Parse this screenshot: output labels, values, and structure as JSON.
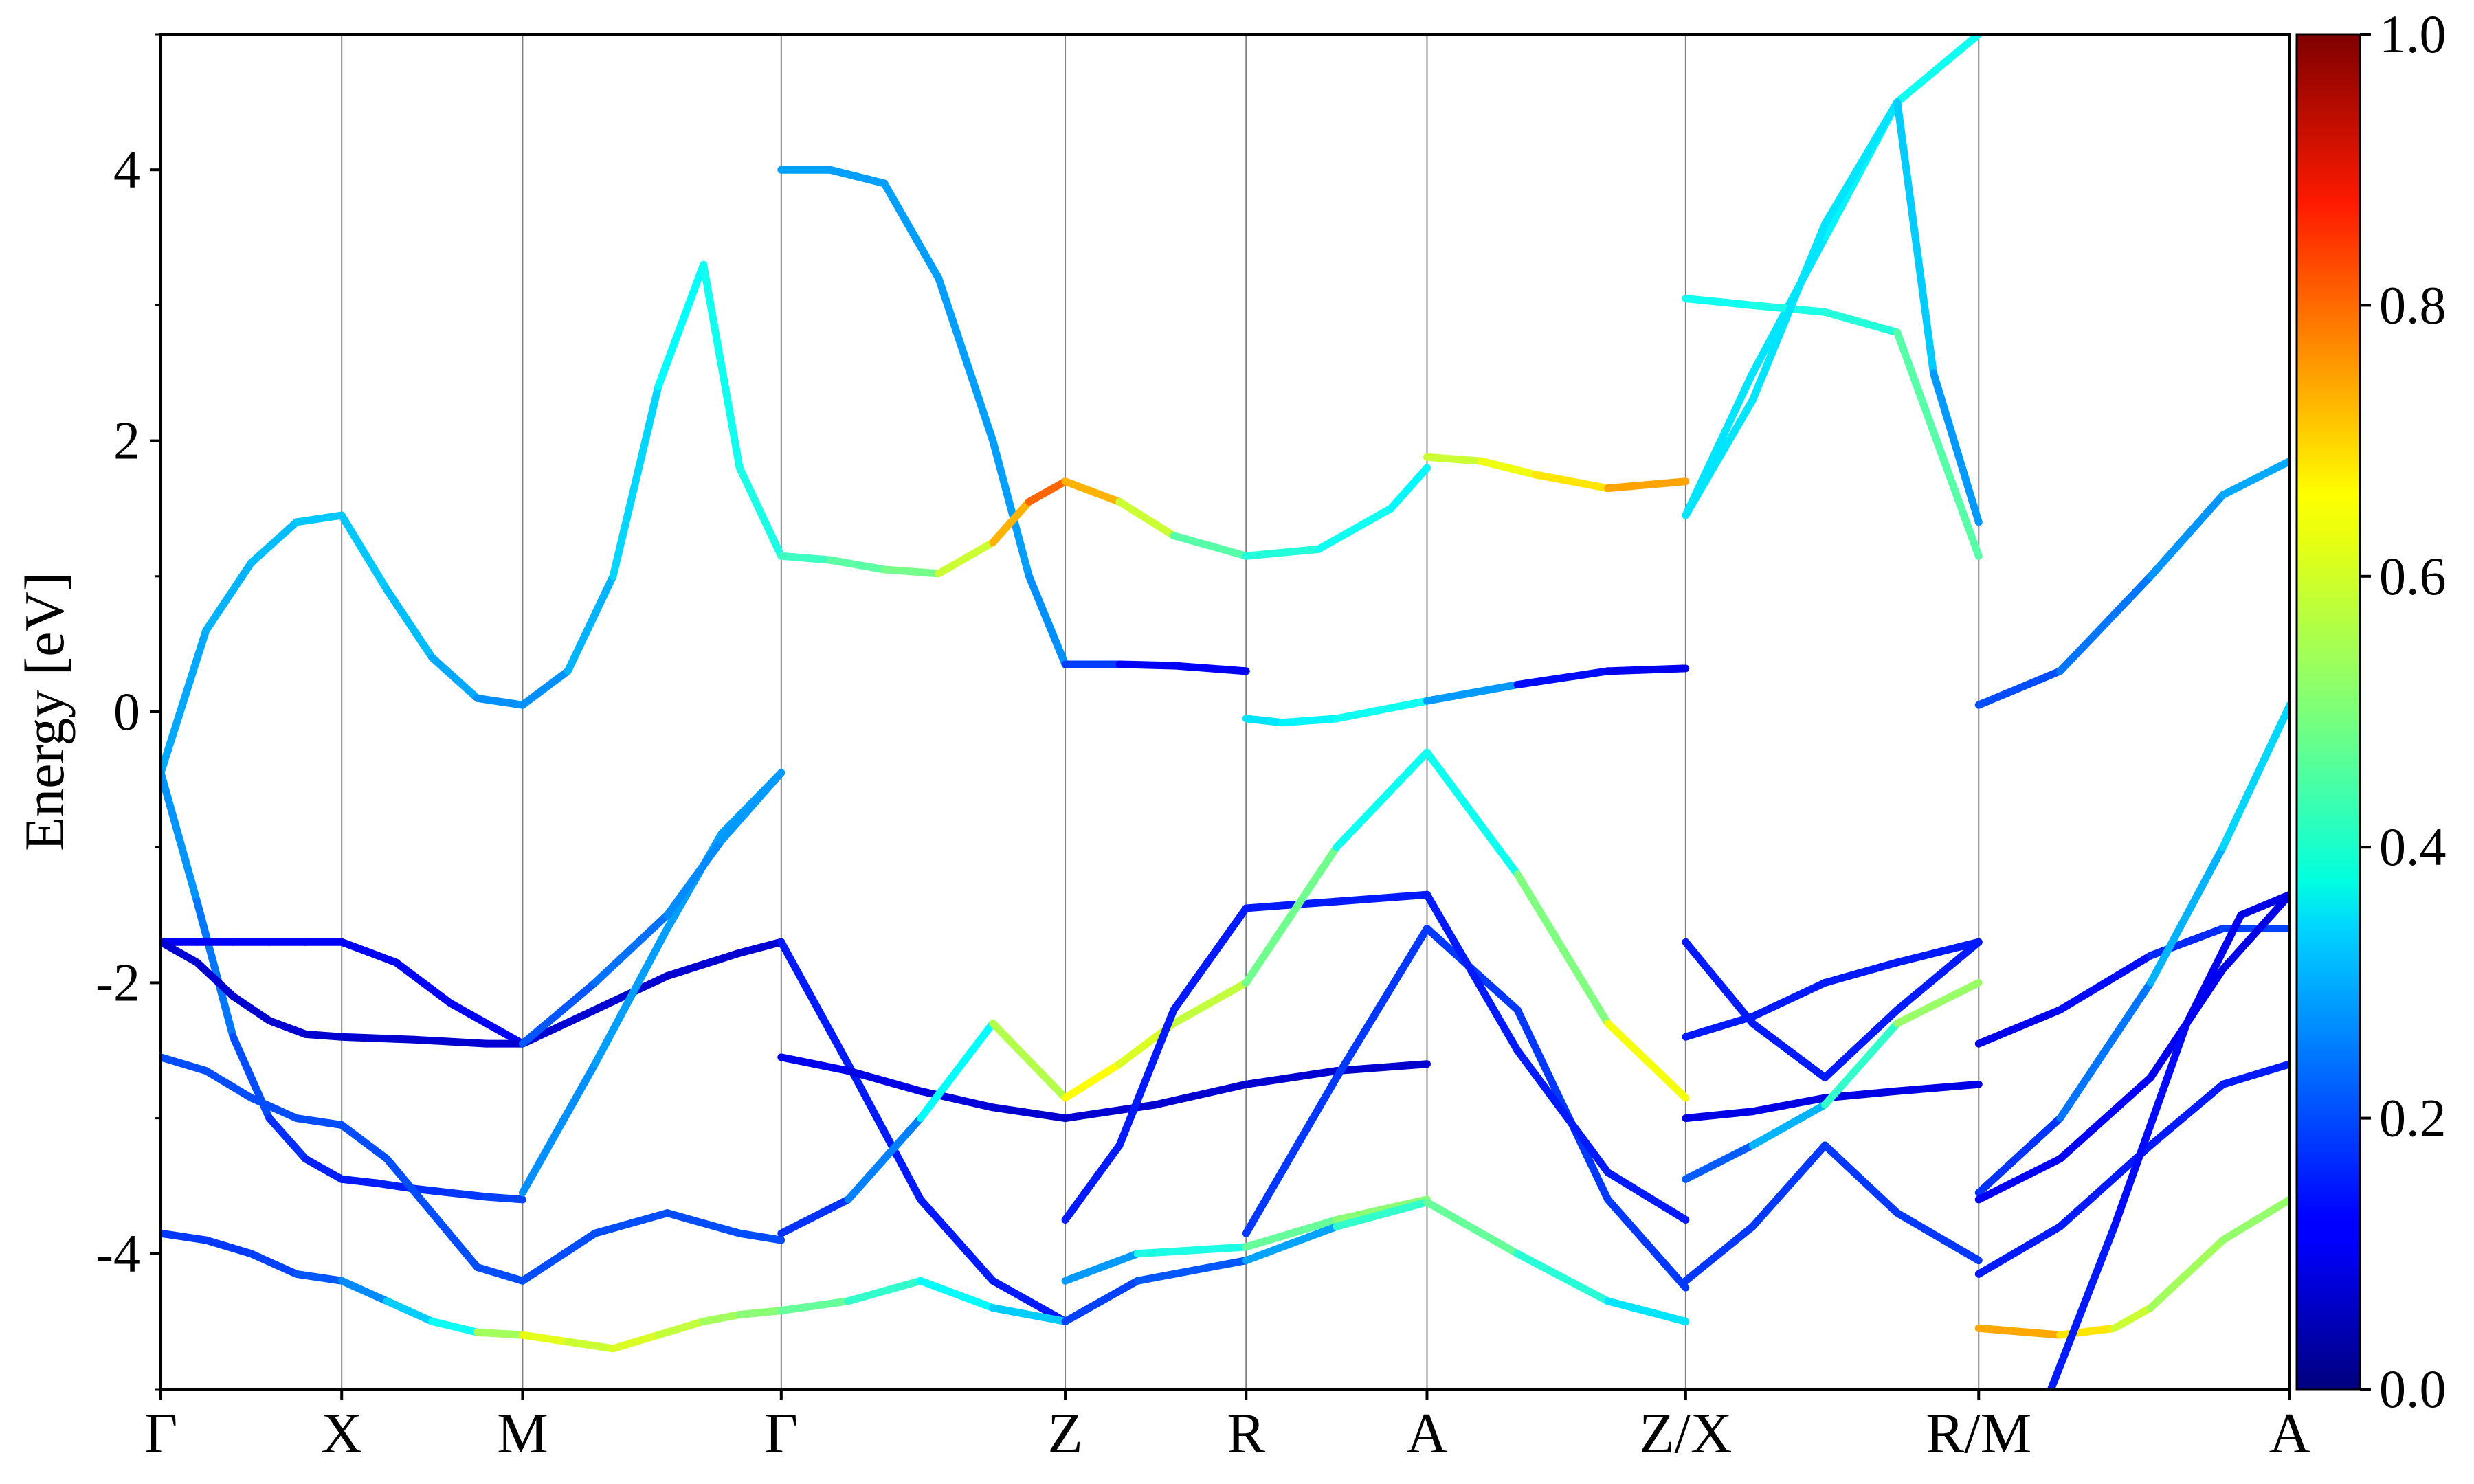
{
  "chart_data": {
    "type": "line",
    "ylabel": "Energy [eV]",
    "ylim": [
      -5,
      5
    ],
    "y_ticks": [
      -4,
      -2,
      0,
      2,
      4
    ],
    "y_tick_labels": [
      "-4",
      "-2",
      "0",
      "2",
      "4"
    ],
    "y_minor_ticks": [
      -5,
      -3,
      -1,
      1,
      3,
      5
    ],
    "xlim": [
      0,
      11.77
    ],
    "x_ticks": [
      0,
      1.0,
      2.0,
      3.43,
      5.0,
      6.0,
      7.0,
      8.43,
      10.05,
      11.77
    ],
    "x_tick_labels": [
      "Γ",
      "X",
      "M",
      "Γ",
      "Z",
      "R",
      "A",
      "Z/X",
      "R/M",
      "A"
    ],
    "grid": "vertical lines at high-symmetry points",
    "colorbar": {
      "colormap": "jet",
      "range": [
        0.0,
        1.0
      ],
      "ticks": [
        0.0,
        0.2,
        0.4,
        0.6,
        0.8,
        1.0
      ],
      "tick_labels": [
        "0.0",
        "0.2",
        "0.4",
        "0.6",
        "0.8",
        "1.0"
      ]
    },
    "series": [
      {
        "x": [
          0,
          0.25,
          0.5,
          0.75,
          1.0,
          1.25,
          1.5,
          1.75,
          2.0,
          2.25,
          2.5,
          2.75,
          3.0,
          3.2,
          3.43
        ],
        "y": [
          -0.45,
          0.6,
          1.1,
          1.4,
          1.45,
          0.9,
          0.4,
          0.1,
          0.05,
          0.3,
          1.0,
          2.4,
          3.3,
          1.8,
          1.15
        ],
        "w": [
          0.28,
          0.3,
          0.3,
          0.32,
          0.32,
          0.32,
          0.3,
          0.28,
          0.25,
          0.28,
          0.32,
          0.35,
          0.4,
          0.38,
          0.42
        ]
      },
      {
        "x": [
          0,
          0.2,
          0.4,
          0.6,
          0.8,
          1.0,
          1.2,
          1.4,
          1.6,
          1.8,
          2.0
        ],
        "y": [
          -0.45,
          -1.4,
          -2.4,
          -3.0,
          -3.3,
          -3.45,
          -3.48,
          -3.52,
          -3.55,
          -3.58,
          -3.6
        ],
        "w": [
          0.28,
          0.26,
          0.22,
          0.18,
          0.16,
          0.15,
          0.15,
          0.16,
          0.18,
          0.18,
          0.2
        ]
      },
      {
        "x": [
          0,
          0.2,
          0.4,
          0.6,
          0.8,
          1.0,
          1.3,
          1.6,
          2.0,
          2.4,
          2.8,
          3.2,
          3.43
        ],
        "y": [
          -1.7,
          -1.7,
          -1.7,
          -1.7,
          -1.7,
          -1.7,
          -1.85,
          -2.15,
          -2.45,
          -2.2,
          -1.95,
          -1.78,
          -1.7
        ],
        "w": [
          0.12,
          0.12,
          0.12,
          0.12,
          0.12,
          0.12,
          0.12,
          0.12,
          0.12,
          0.12,
          0.12,
          0.12,
          0.12
        ]
      },
      {
        "x": [
          0,
          0.2,
          0.4,
          0.6,
          0.8,
          1.0,
          1.4,
          1.8,
          2.0,
          2.4,
          2.8,
          3.2,
          3.43
        ],
        "y": [
          -1.7,
          -1.85,
          -2.1,
          -2.28,
          -2.38,
          -2.4,
          -2.42,
          -2.45,
          -2.45,
          -2.2,
          -1.95,
          -1.78,
          -1.7
        ],
        "w": [
          0.08,
          0.08,
          0.08,
          0.08,
          0.08,
          0.08,
          0.08,
          0.08,
          0.08,
          0.08,
          0.08,
          0.08,
          0.08
        ]
      },
      {
        "x": [
          0,
          0.25,
          0.5,
          0.75,
          1.0,
          1.25,
          1.5,
          1.75,
          2.0,
          2.4,
          2.8,
          3.2,
          3.43
        ],
        "y": [
          -2.55,
          -2.65,
          -2.85,
          -3.0,
          -3.05,
          -3.3,
          -3.7,
          -4.1,
          -4.2,
          -3.85,
          -3.7,
          -3.85,
          -3.9
        ],
        "w": [
          0.2,
          0.2,
          0.2,
          0.2,
          0.2,
          0.2,
          0.2,
          0.2,
          0.2,
          0.2,
          0.2,
          0.2,
          0.2
        ]
      },
      {
        "x": [
          0,
          0.25,
          0.5,
          0.75,
          1.0,
          1.25,
          1.5,
          1.75,
          2.0,
          2.25,
          2.5,
          2.75,
          3.0,
          3.2,
          3.43
        ],
        "y": [
          -3.85,
          -3.9,
          -4.0,
          -4.15,
          -4.2,
          -4.35,
          -4.5,
          -4.58,
          -4.6,
          -4.65,
          -4.7,
          -4.6,
          -4.5,
          -4.45,
          -4.42
        ],
        "w": [
          0.18,
          0.18,
          0.18,
          0.2,
          0.22,
          0.3,
          0.35,
          0.42,
          0.65,
          0.55,
          0.6,
          0.58,
          0.55,
          0.52,
          0.5
        ]
      },
      {
        "x": [
          2.0,
          2.4,
          2.8,
          3.1,
          3.43
        ],
        "y": [
          -3.55,
          -2.6,
          -1.6,
          -0.9,
          -0.45
        ],
        "w": [
          0.25,
          0.28,
          0.28,
          0.28,
          0.28
        ]
      },
      {
        "x": [
          2.0,
          2.4,
          2.8,
          3.1,
          3.43
        ],
        "y": [
          -2.45,
          -2.0,
          -1.5,
          -0.95,
          -0.45
        ],
        "w": [
          0.2,
          0.22,
          0.25,
          0.27,
          0.28
        ]
      },
      {
        "x": [
          3.43,
          3.7,
          4.0,
          4.3,
          4.6,
          4.8,
          5.0,
          5.3,
          5.6,
          6.0
        ],
        "y": [
          4.0,
          4.0,
          3.9,
          3.2,
          2.0,
          1.0,
          0.35,
          0.35,
          0.34,
          0.3
        ],
        "w": [
          0.28,
          0.28,
          0.28,
          0.28,
          0.28,
          0.28,
          0.25,
          0.12,
          0.12,
          0.12
        ]
      },
      {
        "x": [
          3.43,
          3.7,
          4.0,
          4.3,
          4.6,
          4.8,
          5.0
        ],
        "y": [
          1.15,
          1.12,
          1.05,
          1.02,
          1.25,
          1.55,
          1.7
        ],
        "w": [
          0.42,
          0.45,
          0.48,
          0.5,
          0.65,
          0.75,
          0.8
        ]
      },
      {
        "x": [
          5.0,
          5.3,
          5.6,
          6.0,
          6.4,
          6.8,
          7.0
        ],
        "y": [
          1.7,
          1.55,
          1.3,
          1.15,
          1.2,
          1.5,
          1.8
        ],
        "w": [
          0.75,
          0.65,
          0.5,
          0.42,
          0.4,
          0.38,
          0.36
        ]
      },
      {
        "x": [
          3.43,
          3.8,
          4.2,
          4.6,
          5.0
        ],
        "y": [
          -1.7,
          -2.6,
          -3.6,
          -4.2,
          -4.5
        ],
        "w": [
          0.15,
          0.15,
          0.15,
          0.15,
          0.15
        ]
      },
      {
        "x": [
          3.43,
          3.8,
          4.2,
          4.6,
          5.0
        ],
        "y": [
          -2.55,
          -2.65,
          -2.8,
          -2.92,
          -3.0
        ],
        "w": [
          0.12,
          0.1,
          0.1,
          0.08,
          0.08
        ]
      },
      {
        "x": [
          3.43,
          3.8,
          4.2,
          4.6,
          5.0
        ],
        "y": [
          -3.85,
          -3.6,
          -3.0,
          -2.3,
          -2.85
        ],
        "w": [
          0.15,
          0.2,
          0.3,
          0.45,
          0.65
        ]
      },
      {
        "x": [
          3.43,
          3.8,
          4.2,
          4.6,
          5.0
        ],
        "y": [
          -4.42,
          -4.35,
          -4.2,
          -4.4,
          -4.5
        ],
        "w": [
          0.5,
          0.45,
          0.4,
          0.35,
          0.3
        ]
      },
      {
        "x": [
          5.0,
          5.3,
          5.6,
          6.0
        ],
        "y": [
          -2.85,
          -2.6,
          -2.3,
          -2.0
        ],
        "w": [
          0.65,
          0.6,
          0.58,
          0.55
        ]
      },
      {
        "x": [
          5.0,
          5.5,
          6.0,
          6.5,
          7.0
        ],
        "y": [
          -3.0,
          -2.9,
          -2.75,
          -2.65,
          -2.6
        ],
        "w": [
          0.08,
          0.08,
          0.08,
          0.08,
          0.08
        ]
      },
      {
        "x": [
          5.0,
          5.3,
          5.6,
          6.0,
          6.5,
          7.0
        ],
        "y": [
          -3.75,
          -3.2,
          -2.2,
          -1.45,
          -1.4,
          -1.35
        ],
        "w": [
          0.15,
          0.15,
          0.15,
          0.15,
          0.15,
          0.15
        ]
      },
      {
        "x": [
          5.0,
          5.4,
          6.0,
          6.5,
          7.0
        ],
        "y": [
          -4.2,
          -4.0,
          -3.95,
          -3.75,
          -3.6
        ],
        "w": [
          0.2,
          0.35,
          0.45,
          0.5,
          0.52
        ]
      },
      {
        "x": [
          5.0,
          5.4,
          6.0,
          6.5,
          7.0
        ],
        "y": [
          -4.5,
          -4.2,
          -4.05,
          -3.8,
          -3.62
        ],
        "w": [
          0.18,
          0.2,
          0.22,
          0.35,
          0.5
        ]
      },
      {
        "x": [
          6.0,
          6.5,
          7.0,
          7.5,
          8.0,
          8.43
        ],
        "y": [
          -2.0,
          -1.0,
          -0.3,
          -1.2,
          -2.3,
          -2.85
        ],
        "w": [
          0.55,
          0.42,
          0.36,
          0.42,
          0.58,
          0.65
        ]
      },
      {
        "x": [
          6.0,
          6.5,
          7.0,
          7.5,
          8.0,
          8.43
        ],
        "y": [
          -3.85,
          -2.7,
          -1.6,
          -2.2,
          -3.6,
          -4.25
        ],
        "w": [
          0.18,
          0.18,
          0.18,
          0.18,
          0.18,
          0.18
        ]
      },
      {
        "x": [
          7.0,
          7.5,
          8.0,
          8.43
        ],
        "y": [
          -1.35,
          -2.5,
          -3.4,
          -3.75
        ],
        "w": [
          0.15,
          0.15,
          0.15,
          0.15
        ]
      },
      {
        "x": [
          7.0,
          7.5,
          8.0,
          8.43
        ],
        "y": [
          -3.62,
          -4.0,
          -4.35,
          -4.5
        ],
        "w": [
          0.5,
          0.45,
          0.38,
          0.32
        ]
      },
      {
        "x": [
          6.0,
          6.2,
          6.5,
          7.0,
          7.5,
          8.0,
          8.43
        ],
        "y": [
          -0.05,
          -0.08,
          -0.05,
          0.08,
          0.2,
          0.3,
          0.32
        ],
        "w": [
          0.35,
          0.35,
          0.38,
          0.4,
          0.15,
          0.12,
          0.1
        ]
      },
      {
        "x": [
          7.0,
          7.3,
          7.6,
          8.0,
          8.43
        ],
        "y": [
          1.88,
          1.85,
          1.75,
          1.65,
          1.7
        ],
        "w": [
          0.55,
          0.6,
          0.62,
          0.68,
          0.75
        ]
      },
      {
        "x": [
          8.43,
          8.8,
          9.2,
          9.6,
          10.05
        ],
        "y": [
          -1.7,
          -2.3,
          -2.7,
          -2.2,
          -1.7
        ],
        "w": [
          0.15,
          0.15,
          0.15,
          0.15,
          0.15
        ]
      },
      {
        "x": [
          8.43,
          8.8,
          9.2,
          9.6,
          10.05
        ],
        "y": [
          -2.4,
          -2.25,
          -2.0,
          -1.85,
          -1.7
        ],
        "w": [
          0.15,
          0.15,
          0.15,
          0.15,
          0.15
        ]
      },
      {
        "x": [
          8.43,
          8.8,
          9.2,
          9.6,
          10.05
        ],
        "y": [
          -3.0,
          -2.95,
          -2.85,
          -2.8,
          -2.75
        ],
        "w": [
          0.1,
          0.1,
          0.1,
          0.1,
          0.1
        ]
      },
      {
        "x": [
          8.43,
          8.8,
          9.2,
          9.6,
          10.05
        ],
        "y": [
          -4.2,
          -3.8,
          -3.2,
          -3.7,
          -4.05
        ],
        "w": [
          0.18,
          0.18,
          0.18,
          0.18,
          0.18
        ]
      },
      {
        "x": [
          8.43,
          8.8,
          9.2,
          9.6,
          10.05
        ],
        "y": [
          -3.45,
          -3.2,
          -2.9,
          -2.3,
          -2.0
        ],
        "w": [
          0.18,
          0.25,
          0.35,
          0.5,
          0.55
        ]
      },
      {
        "x": [
          8.43,
          8.8,
          9.2,
          9.6,
          10.05
        ],
        "y": [
          1.45,
          2.5,
          3.5,
          4.5,
          5.0
        ],
        "w": [
          0.35,
          0.35,
          0.35,
          0.38,
          0.4
        ]
      },
      {
        "x": [
          8.43,
          8.8,
          9.2,
          9.6,
          10.05
        ],
        "y": [
          3.05,
          3.0,
          2.95,
          2.8,
          1.15
        ],
        "w": [
          0.38,
          0.4,
          0.4,
          0.42,
          0.5
        ]
      },
      {
        "x": [
          8.43,
          8.8,
          9.2,
          9.6,
          9.8,
          10.05
        ],
        "y": [
          1.45,
          2.3,
          3.6,
          4.5,
          2.5,
          1.4
        ],
        "w": [
          0.35,
          0.35,
          0.35,
          0.35,
          0.3,
          0.25
        ]
      },
      {
        "x": [
          10.05,
          10.5,
          11.0,
          11.4,
          11.77
        ],
        "y": [
          0.05,
          0.3,
          1.0,
          1.6,
          1.85
        ],
        "w": [
          0.18,
          0.22,
          0.26,
          0.28,
          0.3
        ]
      },
      {
        "x": [
          10.05,
          10.5,
          11.0,
          11.4,
          11.77
        ],
        "y": [
          -2.45,
          -2.2,
          -1.8,
          -1.6,
          -1.6
        ],
        "w": [
          0.1,
          0.12,
          0.15,
          0.18,
          0.2
        ]
      },
      {
        "x": [
          10.05,
          10.5,
          11.0,
          11.4,
          11.77
        ],
        "y": [
          -3.55,
          -3.0,
          -2.0,
          -1.0,
          0.05
        ],
        "w": [
          0.15,
          0.2,
          0.28,
          0.32,
          0.35
        ]
      },
      {
        "x": [
          10.05,
          10.5,
          11.0,
          11.4,
          11.77
        ],
        "y": [
          -3.6,
          -3.3,
          -2.7,
          -1.9,
          -1.35
        ],
        "w": [
          0.12,
          0.12,
          0.12,
          0.1,
          0.1
        ]
      },
      {
        "x": [
          10.05,
          10.5,
          11.0,
          11.4,
          11.77
        ],
        "y": [
          -4.15,
          -3.8,
          -3.2,
          -2.75,
          -2.6
        ],
        "w": [
          0.15,
          0.15,
          0.15,
          0.15,
          0.15
        ]
      },
      {
        "x": [
          10.05,
          10.5,
          10.8,
          11.0,
          11.4,
          11.77
        ],
        "y": [
          -4.55,
          -4.6,
          -4.55,
          -4.4,
          -3.9,
          -3.6
        ],
        "w": [
          0.72,
          0.7,
          0.6,
          0.55,
          0.52,
          0.52
        ]
      },
      {
        "x": [
          10.45,
          10.8,
          11.2,
          11.5,
          11.77
        ],
        "y": [
          -5.0,
          -3.8,
          -2.3,
          -1.5,
          -1.35
        ],
        "w": [
          0.15,
          0.15,
          0.12,
          0.1,
          0.1
        ]
      }
    ]
  }
}
